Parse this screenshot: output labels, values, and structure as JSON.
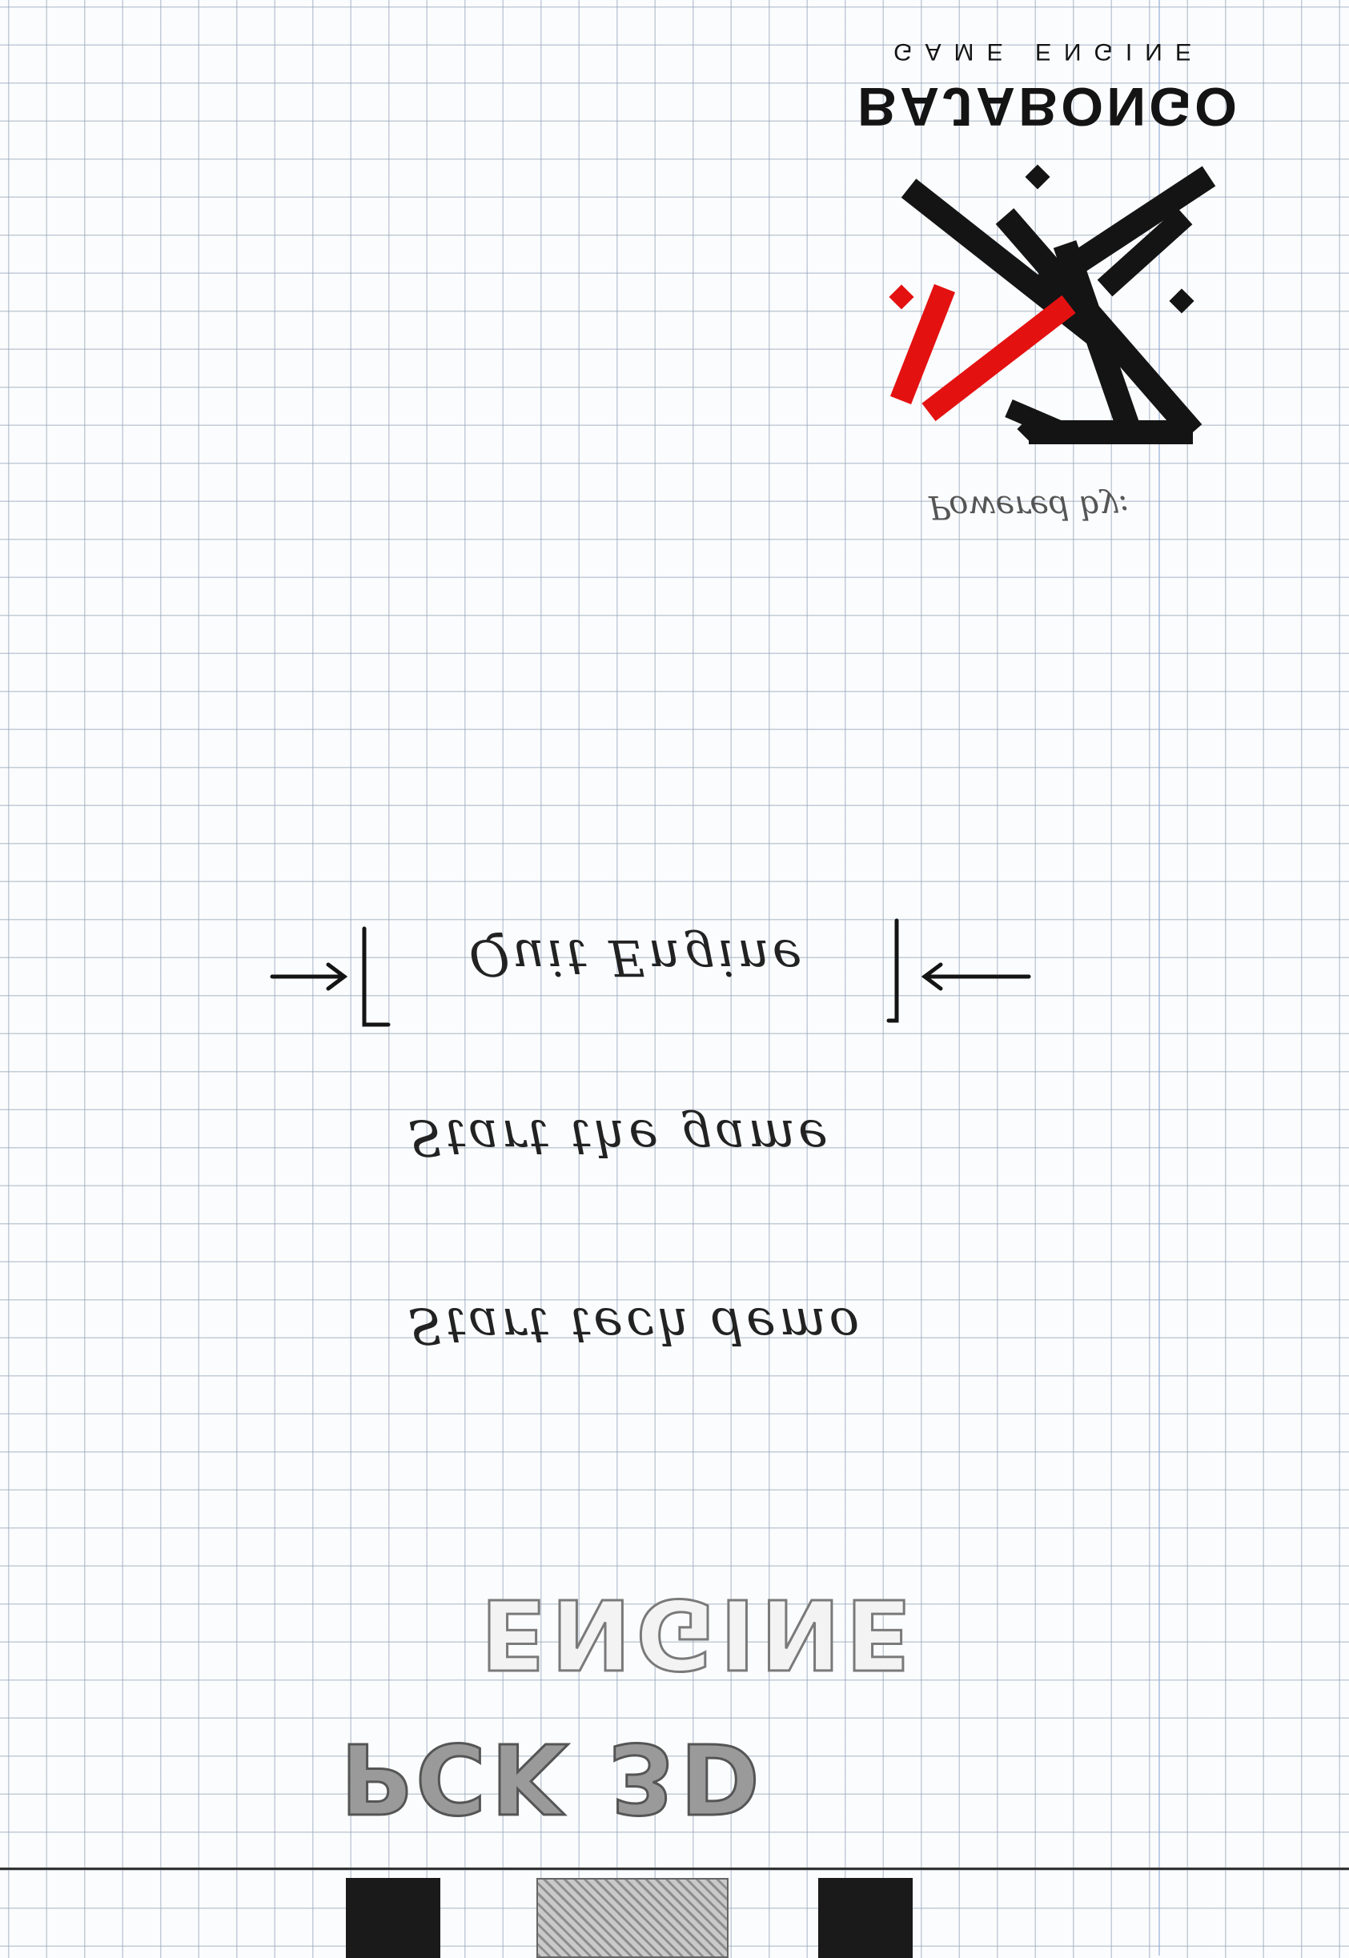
{
  "brand": {
    "tagline": "GAME ENGINE",
    "wordmark": "BAJABONGO",
    "colors": {
      "ink": "#141414",
      "accent": "#e41111"
    }
  },
  "credit": {
    "text": "Powered by:"
  },
  "menu": {
    "items": [
      {
        "label": "Quit Engine",
        "selected": true
      },
      {
        "label": "Start the game",
        "selected": false
      },
      {
        "label": "Start tech demo",
        "selected": false
      }
    ],
    "selection_marker": "bracket-arrows"
  },
  "title": {
    "line1": "ENGINE",
    "line2": "PCK 3D"
  },
  "footer": {
    "blocks": [
      "dark",
      "hatched",
      "dark"
    ]
  }
}
